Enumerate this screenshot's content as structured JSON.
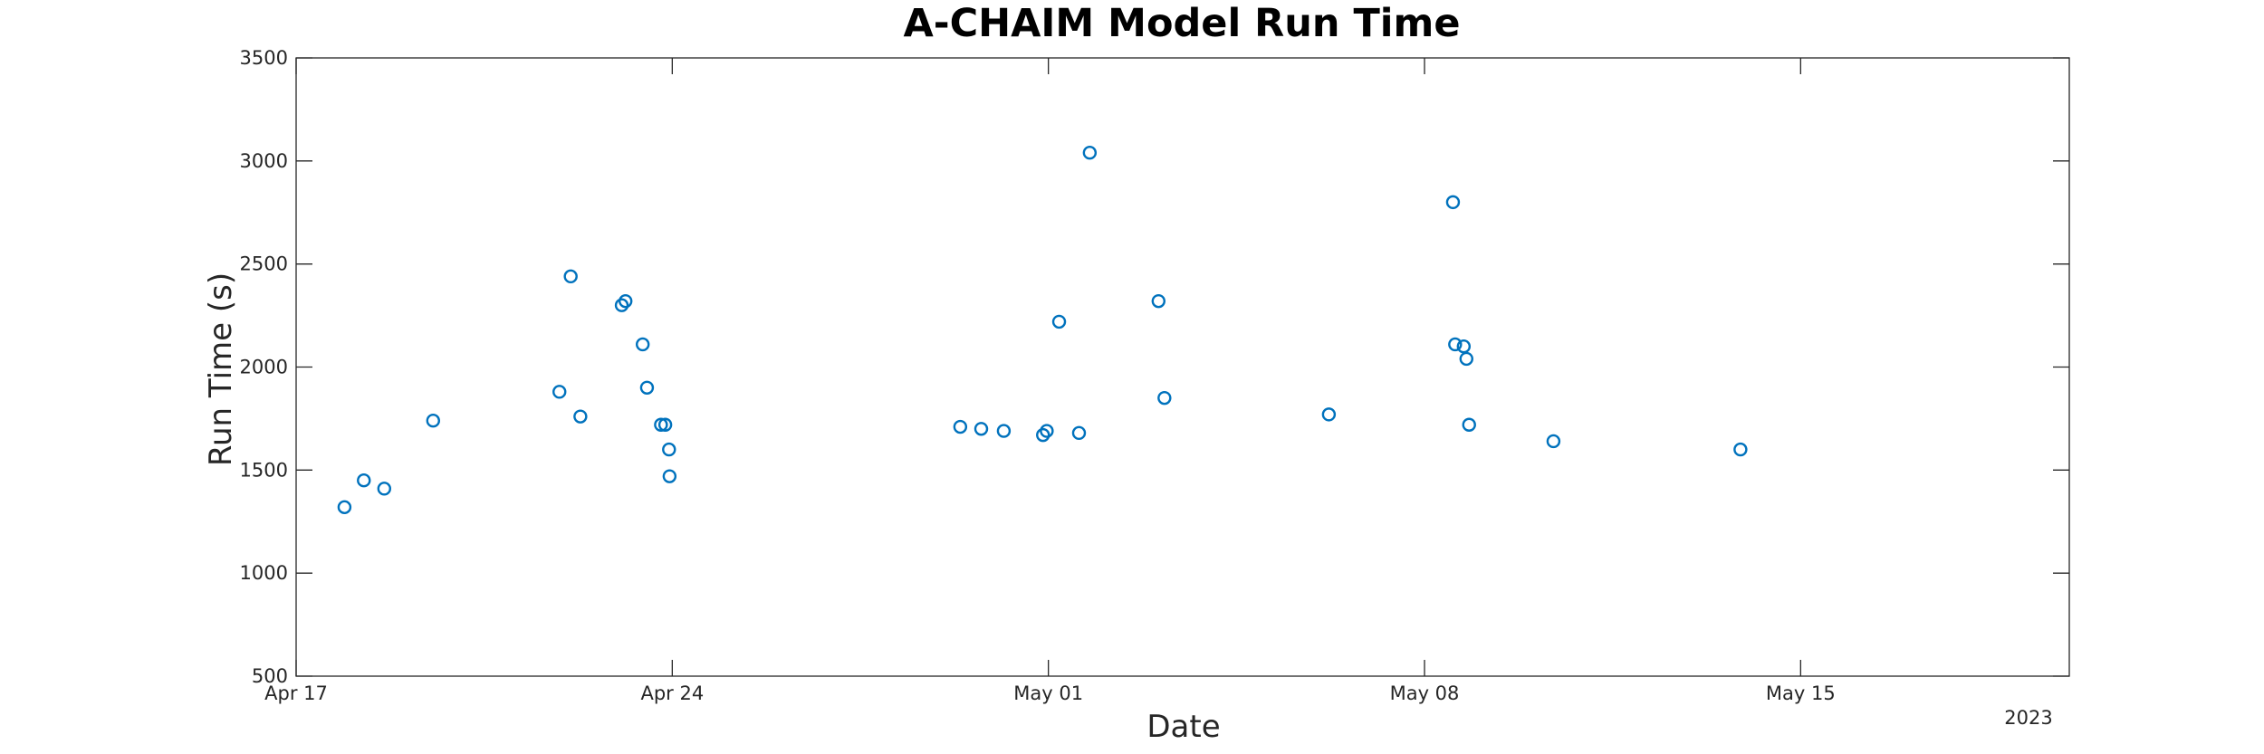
{
  "chart_data": {
    "type": "scatter",
    "title": "A-CHAIM Model Run Time",
    "xlabel": "Date",
    "ylabel": "Run Time (s)",
    "x_start_date": "2023-04-17",
    "x_range_days": [
      0,
      33
    ],
    "x_ticks": [
      {
        "day": 0,
        "label": "Apr 17"
      },
      {
        "day": 7,
        "label": "Apr 24"
      },
      {
        "day": 14,
        "label": "May 01"
      },
      {
        "day": 21,
        "label": "May 08"
      },
      {
        "day": 28,
        "label": "May 15"
      }
    ],
    "x_secondary_label": "2023",
    "ylim": [
      500,
      3500
    ],
    "y_ticks": [
      500,
      1000,
      1500,
      2000,
      2500,
      3000,
      3500
    ],
    "grid": false,
    "marker_color": "#0072BD",
    "series": [
      {
        "x": [
          0.9,
          1.26,
          1.64,
          2.55,
          4.9,
          5.11,
          5.29,
          6.06,
          6.13,
          6.45,
          6.53,
          6.79,
          6.87,
          6.94,
          6.95,
          12.36,
          12.75,
          13.17,
          13.9,
          13.97,
          14.2,
          14.57,
          14.77,
          16.05,
          16.16,
          19.22,
          21.53,
          21.57,
          21.73,
          21.78,
          21.83,
          23.4,
          26.88
        ],
        "y": [
          1320,
          1450,
          1410,
          1740,
          1880,
          2440,
          1760,
          2300,
          2320,
          2110,
          1900,
          1720,
          1720,
          1600,
          1470,
          1710,
          1700,
          1690,
          1670,
          1690,
          2220,
          1680,
          3040,
          2320,
          1850,
          1770,
          2800,
          2110,
          2100,
          2040,
          1720,
          1640,
          1600
        ]
      }
    ]
  }
}
